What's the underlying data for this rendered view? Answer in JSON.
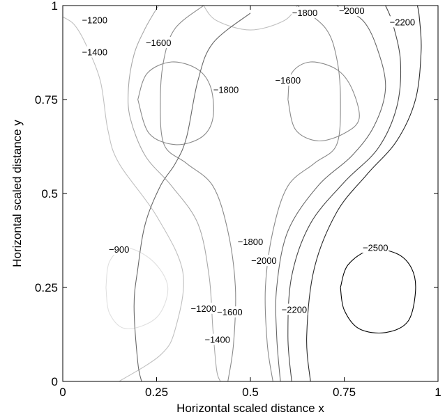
{
  "chart_data": {
    "type": "contour",
    "title": "",
    "xlabel": "Horizontal scaled distance x",
    "ylabel": "Horizontal scaled distance y",
    "xlim": [
      0,
      1
    ],
    "ylim": [
      0,
      1
    ],
    "x_ticks": [
      0,
      0.25,
      0.5,
      0.75,
      1
    ],
    "x_tick_labels": [
      "0",
      "0.25",
      "0.5",
      "0.75",
      "1"
    ],
    "y_ticks": [
      0,
      0.25,
      0.5,
      0.75,
      1
    ],
    "y_tick_labels": [
      "0",
      "0.25",
      "0.5",
      "0.75",
      "1"
    ],
    "grid": false,
    "colormap": "gray (darker = more negative)",
    "levels": [
      {
        "value": -900,
        "color": "#e0e0e0"
      },
      {
        "value": -1200,
        "color": "#c0c0c0"
      },
      {
        "value": -1400,
        "color": "#a8a8a8"
      },
      {
        "value": -1600,
        "color": "#8a8a8a"
      },
      {
        "value": -1800,
        "color": "#686868"
      },
      {
        "value": -2000,
        "color": "#484848"
      },
      {
        "value": -2200,
        "color": "#2a2a2a"
      },
      {
        "value": -2500,
        "color": "#000000"
      }
    ],
    "contours": [
      {
        "level": -900,
        "points": [
          [
            0.115,
            0.25
          ],
          [
            0.125,
            0.32
          ],
          [
            0.17,
            0.355
          ],
          [
            0.24,
            0.32
          ],
          [
            0.28,
            0.25
          ],
          [
            0.25,
            0.17
          ],
          [
            0.17,
            0.14
          ],
          [
            0.125,
            0.18
          ],
          [
            0.115,
            0.25
          ]
        ]
      },
      {
        "level": -1200,
        "points": [
          [
            0.15,
            0
          ],
          [
            0.26,
            0.07
          ],
          [
            0.3,
            0.14
          ],
          [
            0.32,
            0.29
          ],
          [
            0.25,
            0.44
          ],
          [
            0.15,
            0.58
          ],
          [
            0.12,
            0.67
          ],
          [
            0.1,
            0.8
          ],
          [
            0.06,
            0.9
          ],
          [
            0.03,
            0.95
          ],
          [
            0,
            0.97
          ]
        ]
      },
      {
        "level": -1200,
        "points": [
          [
            0.375,
            1
          ],
          [
            0.41,
            0.96
          ],
          [
            0.5,
            0.935
          ],
          [
            0.59,
            0.96
          ],
          [
            0.625,
            1
          ]
        ]
      },
      {
        "level": -1400,
        "points": [
          [
            0.255,
            1
          ],
          [
            0.22,
            0.94
          ],
          [
            0.19,
            0.87
          ],
          [
            0.175,
            0.78
          ],
          [
            0.18,
            0.7
          ],
          [
            0.22,
            0.6
          ],
          [
            0.29,
            0.52
          ],
          [
            0.36,
            0.42
          ],
          [
            0.39,
            0.28
          ],
          [
            0.4,
            0.14
          ],
          [
            0.41,
            0.03
          ],
          [
            0.42,
            0
          ]
        ]
      },
      {
        "level": -1400,
        "points": [
          [
            0.255,
            1
          ],
          [
            0.3,
            1
          ],
          [
            0.375,
            1
          ]
        ]
      },
      {
        "level": -1600,
        "points": [
          [
            0.44,
            0
          ],
          [
            0.455,
            0.1
          ],
          [
            0.46,
            0.25
          ],
          [
            0.44,
            0.4
          ],
          [
            0.4,
            0.52
          ],
          [
            0.33,
            0.58
          ],
          [
            0.27,
            0.63
          ],
          [
            0.26,
            0.75
          ],
          [
            0.27,
            0.86
          ],
          [
            0.3,
            0.94
          ],
          [
            0.375,
            1
          ]
        ]
      },
      {
        "level": -1600,
        "points": [
          [
            0.625,
            1
          ],
          [
            0.7,
            0.94
          ],
          [
            0.73,
            0.86
          ],
          [
            0.74,
            0.75
          ],
          [
            0.73,
            0.63
          ],
          [
            0.67,
            0.58
          ],
          [
            0.6,
            0.52
          ],
          [
            0.56,
            0.4
          ],
          [
            0.54,
            0.25
          ],
          [
            0.545,
            0.1
          ],
          [
            0.56,
            0
          ]
        ]
      },
      {
        "level": -1600,
        "points": [
          [
            0.2,
            0.75
          ],
          [
            0.225,
            0.82
          ],
          [
            0.29,
            0.85
          ],
          [
            0.36,
            0.83
          ],
          [
            0.395,
            0.78
          ],
          [
            0.4,
            0.7
          ],
          [
            0.37,
            0.65
          ],
          [
            0.3,
            0.63
          ],
          [
            0.23,
            0.66
          ],
          [
            0.2,
            0.75
          ]
        ]
      },
      {
        "level": -1600,
        "points": [
          [
            0.6,
            0.75
          ],
          [
            0.61,
            0.82
          ],
          [
            0.66,
            0.85
          ],
          [
            0.73,
            0.83
          ],
          [
            0.77,
            0.78
          ],
          [
            0.79,
            0.7
          ],
          [
            0.75,
            0.66
          ],
          [
            0.68,
            0.64
          ],
          [
            0.62,
            0.67
          ],
          [
            0.6,
            0.75
          ]
        ]
      },
      {
        "level": -1800,
        "points": [
          [
            0.58,
            0
          ],
          [
            0.57,
            0.12
          ],
          [
            0.57,
            0.25
          ],
          [
            0.6,
            0.4
          ],
          [
            0.68,
            0.52
          ],
          [
            0.77,
            0.6
          ],
          [
            0.83,
            0.68
          ],
          [
            0.86,
            0.78
          ],
          [
            0.84,
            0.88
          ],
          [
            0.8,
            0.96
          ],
          [
            0.73,
            1
          ]
        ]
      },
      {
        "level": -1800,
        "points": [
          [
            0.5,
            0.98
          ],
          [
            0.4,
            0.9
          ],
          [
            0.36,
            0.8
          ],
          [
            0.33,
            0.65
          ],
          [
            0.3,
            0.58
          ],
          [
            0.26,
            0.52
          ],
          [
            0.22,
            0.42
          ],
          [
            0.2,
            0.3
          ],
          [
            0.19,
            0.2
          ],
          [
            0.2,
            0.05
          ],
          [
            0.21,
            0
          ]
        ]
      },
      {
        "level": -2000,
        "points": [
          [
            0.61,
            0
          ],
          [
            0.6,
            0.12
          ],
          [
            0.61,
            0.28
          ],
          [
            0.66,
            0.42
          ],
          [
            0.75,
            0.53
          ],
          [
            0.84,
            0.62
          ],
          [
            0.89,
            0.73
          ],
          [
            0.9,
            0.85
          ],
          [
            0.88,
            0.95
          ],
          [
            0.86,
            1
          ]
        ]
      },
      {
        "level": -2200,
        "points": [
          [
            0.66,
            0
          ],
          [
            0.65,
            0.12
          ],
          [
            0.67,
            0.3
          ],
          [
            0.73,
            0.45
          ],
          [
            0.81,
            0.55
          ],
          [
            0.89,
            0.64
          ],
          [
            0.94,
            0.75
          ],
          [
            0.955,
            0.88
          ],
          [
            0.95,
            0.97
          ],
          [
            0.945,
            1
          ]
        ]
      },
      {
        "level": -2500,
        "points": [
          [
            0.74,
            0.25
          ],
          [
            0.76,
            0.31
          ],
          [
            0.82,
            0.35
          ],
          [
            0.89,
            0.34
          ],
          [
            0.93,
            0.3
          ],
          [
            0.94,
            0.24
          ],
          [
            0.92,
            0.16
          ],
          [
            0.86,
            0.13
          ],
          [
            0.79,
            0.14
          ],
          [
            0.75,
            0.19
          ],
          [
            0.74,
            0.25
          ]
        ]
      }
    ],
    "contour_labels": [
      {
        "text": "−1200",
        "x": 0.085,
        "y": 0.96
      },
      {
        "text": "−1400",
        "x": 0.085,
        "y": 0.875
      },
      {
        "text": "−1600",
        "x": 0.255,
        "y": 0.9
      },
      {
        "text": "−1800",
        "x": 0.435,
        "y": 0.775
      },
      {
        "text": "−1600",
        "x": 0.6,
        "y": 0.8
      },
      {
        "text": "−1800",
        "x": 0.645,
        "y": 0.98
      },
      {
        "text": "−2000",
        "x": 0.77,
        "y": 0.985
      },
      {
        "text": "−2200",
        "x": 0.905,
        "y": 0.955
      },
      {
        "text": "−900",
        "x": 0.15,
        "y": 0.35
      },
      {
        "text": "−2500",
        "x": 0.833,
        "y": 0.355
      },
      {
        "text": "−1800",
        "x": 0.5,
        "y": 0.37
      },
      {
        "text": "−2000",
        "x": 0.536,
        "y": 0.32
      },
      {
        "text": "−1200",
        "x": 0.375,
        "y": 0.193
      },
      {
        "text": "−1600",
        "x": 0.445,
        "y": 0.183
      },
      {
        "text": "−2200",
        "x": 0.617,
        "y": 0.19
      },
      {
        "text": "−1400",
        "x": 0.412,
        "y": 0.11
      }
    ]
  }
}
